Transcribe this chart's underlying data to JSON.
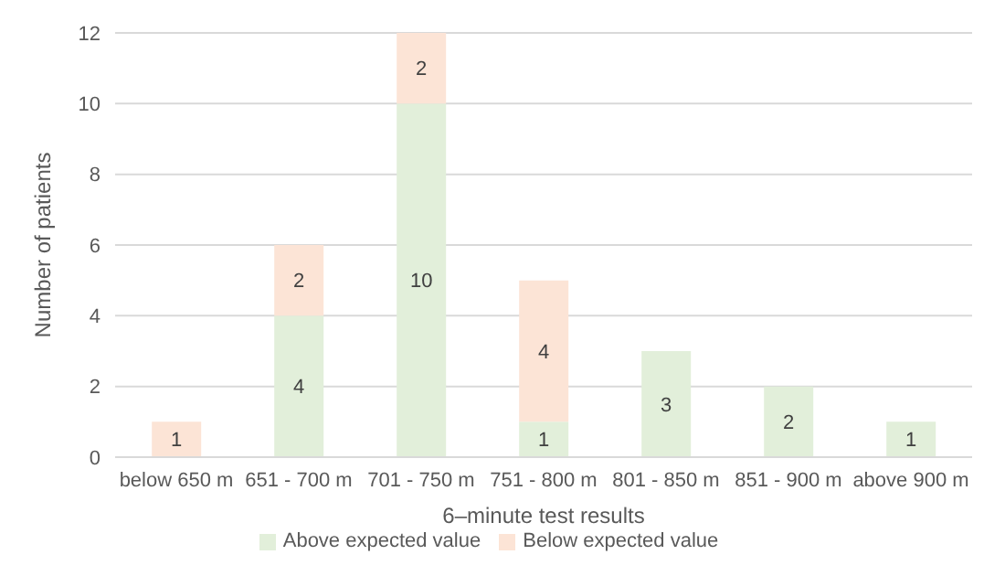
{
  "chart_data": {
    "type": "bar",
    "stacked": true,
    "xlabel": "6–minute test results",
    "ylabel": "Number of patients",
    "categories": [
      "below 650 m",
      "651 - 700 m",
      "701 - 750 m",
      "751 - 800 m",
      "801 - 850 m",
      "851 - 900 m",
      "above 900 m"
    ],
    "series": [
      {
        "name": "Above expected value",
        "color": "#e2efda",
        "values": [
          0,
          4,
          10,
          1,
          3,
          2,
          1
        ],
        "value_labels": [
          null,
          "4",
          "10",
          "1",
          "3",
          "2",
          "1"
        ]
      },
      {
        "name": "Below expected value",
        "color": "#fce4d6",
        "values": [
          1,
          2,
          2,
          4,
          0,
          0,
          0
        ],
        "value_labels": [
          "1",
          "2",
          "2",
          "4",
          null,
          null,
          null
        ]
      }
    ],
    "ylim": [
      0,
      12
    ],
    "yticks": [
      0,
      2,
      4,
      6,
      8,
      10,
      12
    ],
    "grid": "y",
    "legend": "bottom"
  }
}
